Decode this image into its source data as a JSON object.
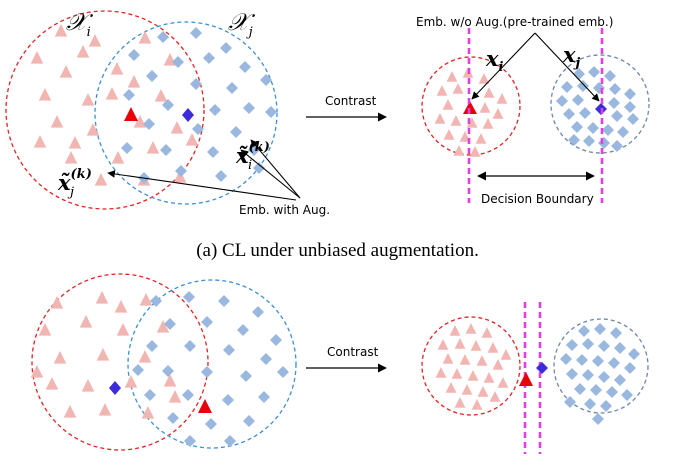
{
  "colors": {
    "red_circle": "#e02424",
    "blue_circle": "#3b8fd9",
    "gray_blue_circle": "#6f86a8",
    "triangle_faint": "#f2b6b2",
    "diamond_faint": "#9ab7e0",
    "anchor_triangle": "#e8000b",
    "anchor_diamond": "#3b2bdb",
    "boundary": "#e040e0"
  },
  "icons": {
    "class_i_marker": "triangle",
    "class_j_marker": "diamond",
    "arrow": "right-arrow"
  },
  "panel_a": {
    "set_i_label": "𝒳",
    "set_i_sub": "i",
    "set_j_label": "𝒳",
    "set_j_sub": "j",
    "aug_i_label": "x̃",
    "aug_i_sub": "i",
    "aug_i_sup": "(k)",
    "aug_j_label": "x̃",
    "aug_j_sub": "j",
    "aug_j_sup": "(k)",
    "emb_with_aug": "Emb. with Aug.",
    "contrast": "Contrast",
    "emb_wo_aug": "Emb. w/o Aug.(pre-trained emb.)",
    "xi_label": "x",
    "xi_sub": "i",
    "xj_label": "x",
    "xj_sub": "j",
    "decision_boundary": "Decision Boundary",
    "caption": "(a) CL under unbiased augmentation."
  },
  "panel_b": {
    "contrast": "Contrast"
  }
}
